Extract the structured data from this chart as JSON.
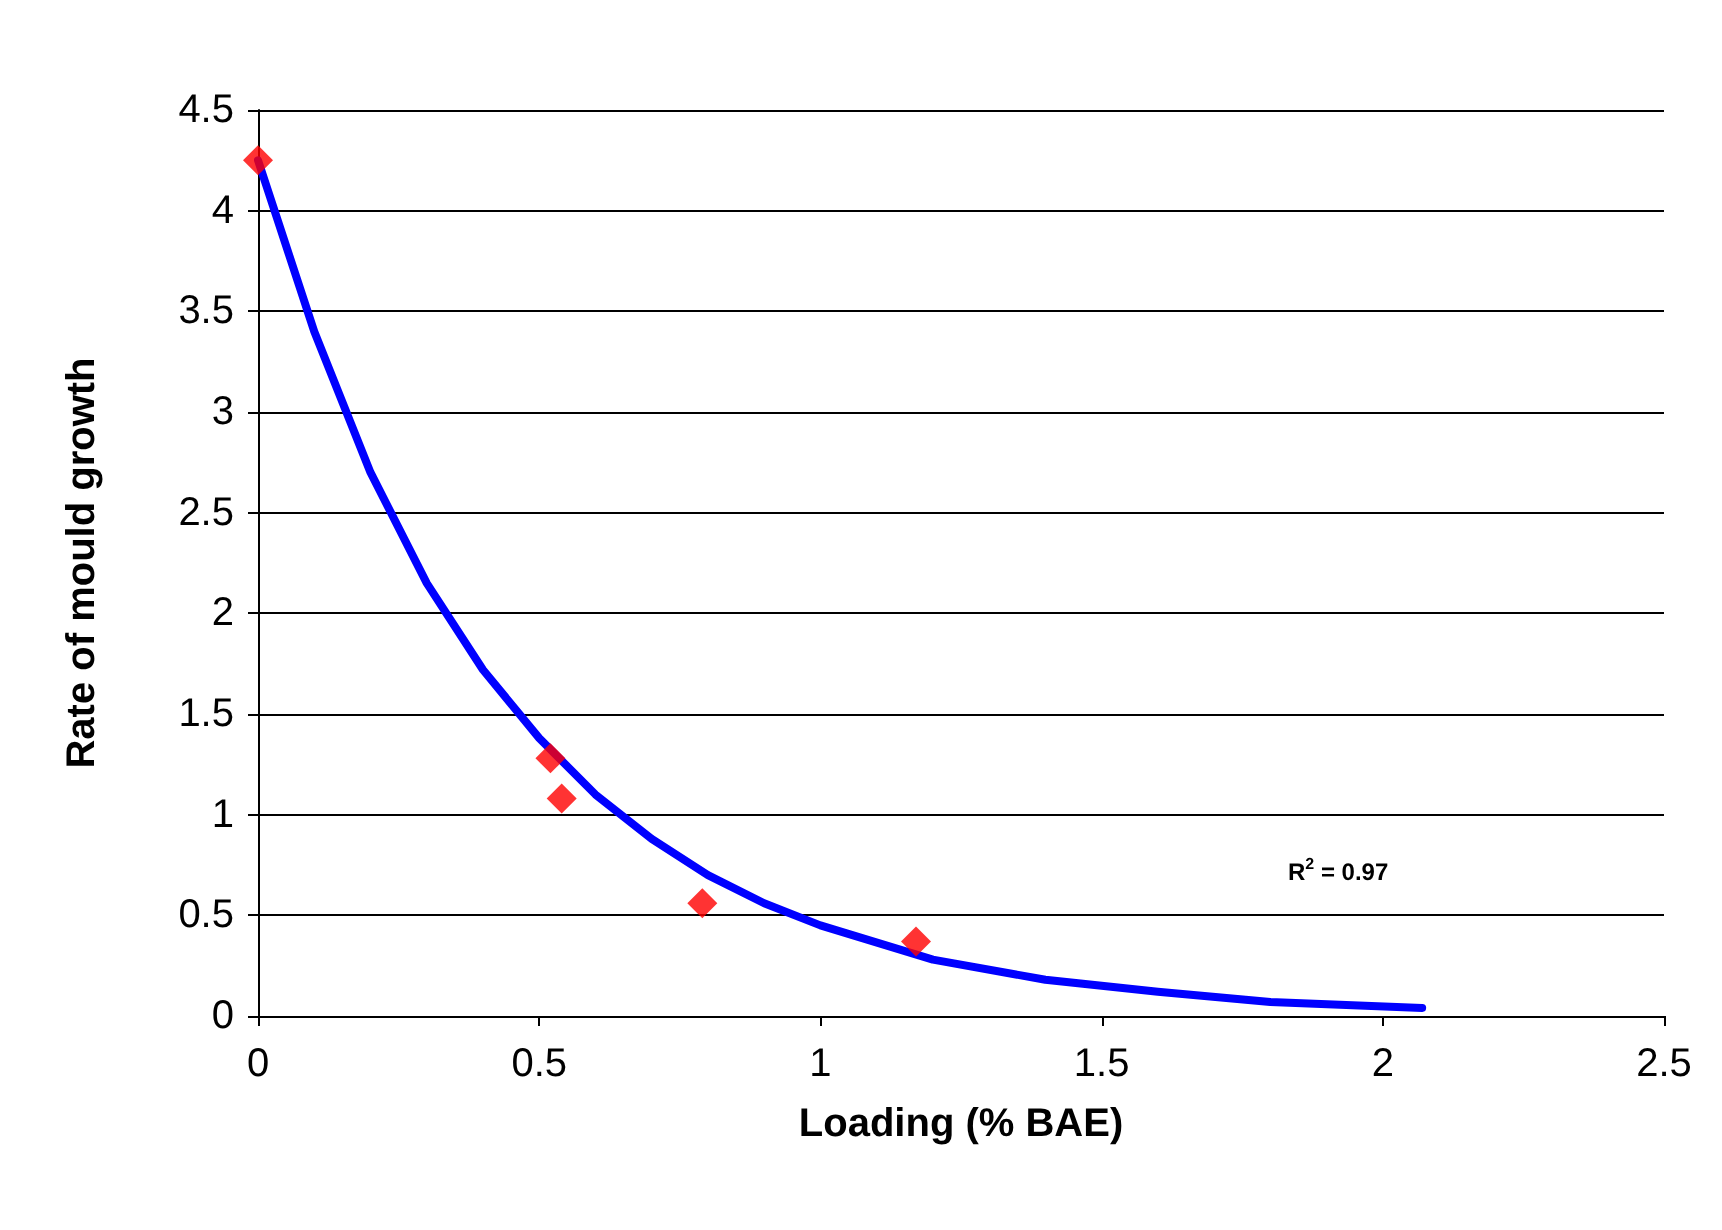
{
  "chart_data": {
    "type": "scatter",
    "xlabel": "Loading (% BAE)",
    "ylabel": "Rate of mould growth",
    "xlim": [
      0,
      2.5
    ],
    "xticks": [
      0,
      0.5,
      1,
      1.5,
      2,
      2.5
    ],
    "ylim": [
      0,
      4.5
    ],
    "yticks": [
      0,
      0.5,
      1,
      1.5,
      2,
      2.5,
      3,
      3.5,
      4,
      4.5
    ],
    "grid": "y",
    "series": [
      {
        "color": "#ff0000",
        "marker": "diamond",
        "x": [
          0,
          0.52,
          0.54,
          0.79,
          1.17
        ],
        "values": [
          4.25,
          1.28,
          1.08,
          0.56,
          0.37
        ]
      },
      {
        "type": "line",
        "color": "#0000ff",
        "marker": "none",
        "line_style": "solid",
        "x": [
          0,
          0.1,
          0.2,
          0.3,
          0.4,
          0.5,
          0.6,
          0.7,
          0.8,
          0.9,
          1.0,
          1.2,
          1.4,
          1.6,
          1.8,
          2.07
        ],
        "values": [
          4.25,
          3.4,
          2.7,
          2.15,
          1.72,
          1.38,
          1.1,
          0.88,
          0.7,
          0.56,
          0.45,
          0.28,
          0.18,
          0.12,
          0.07,
          0.04
        ]
      }
    ],
    "annotations": [
      "R$^{2}$ = 0.97"
    ]
  }
}
